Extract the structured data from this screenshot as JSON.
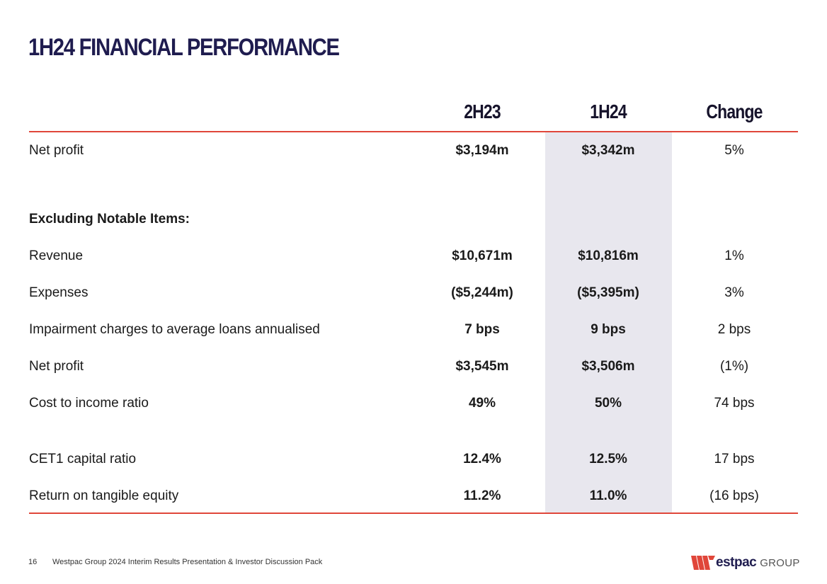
{
  "title": "1H24 FINANCIAL PERFORMANCE",
  "columns": {
    "col1": "2H23",
    "col2": "1H24",
    "col3": "Change"
  },
  "rows": [
    {
      "label": "Net profit",
      "c1": "$3,194m",
      "c2": "$3,342m",
      "c3": "5%"
    },
    {
      "label": "Excluding Notable Items:",
      "c1": "",
      "c2": "",
      "c3": ""
    },
    {
      "label": "Revenue",
      "c1": "$10,671m",
      "c2": "$10,816m",
      "c3": "1%"
    },
    {
      "label": "Expenses",
      "c1": "($5,244m)",
      "c2": "($5,395m)",
      "c3": "3%"
    },
    {
      "label": "Impairment charges to average loans annualised",
      "c1": "7 bps",
      "c2": "9 bps",
      "c3": "2 bps"
    },
    {
      "label": "Net profit",
      "c1": "$3,545m",
      "c2": "$3,506m",
      "c3": "(1%)"
    },
    {
      "label": "Cost to income ratio",
      "c1": "49%",
      "c2": "50%",
      "c3": "74 bps"
    },
    {
      "label": "CET1 capital ratio",
      "c1": "12.4%",
      "c2": "12.5%",
      "c3": "17 bps"
    },
    {
      "label": "Return on tangible equity",
      "c1": "11.2%",
      "c2": "11.0%",
      "c3": "(16 bps)"
    }
  ],
  "footer": {
    "page_number": "16",
    "text": "Westpac Group 2024 Interim Results Presentation & Investor Discussion Pack"
  },
  "logo": {
    "brand": "estpac",
    "group": "GROUP",
    "icon": "westpac-w-icon"
  },
  "colors": {
    "accent_red": "#e0463a",
    "navy": "#1f1c4f",
    "highlight": "#e8e7ee"
  }
}
